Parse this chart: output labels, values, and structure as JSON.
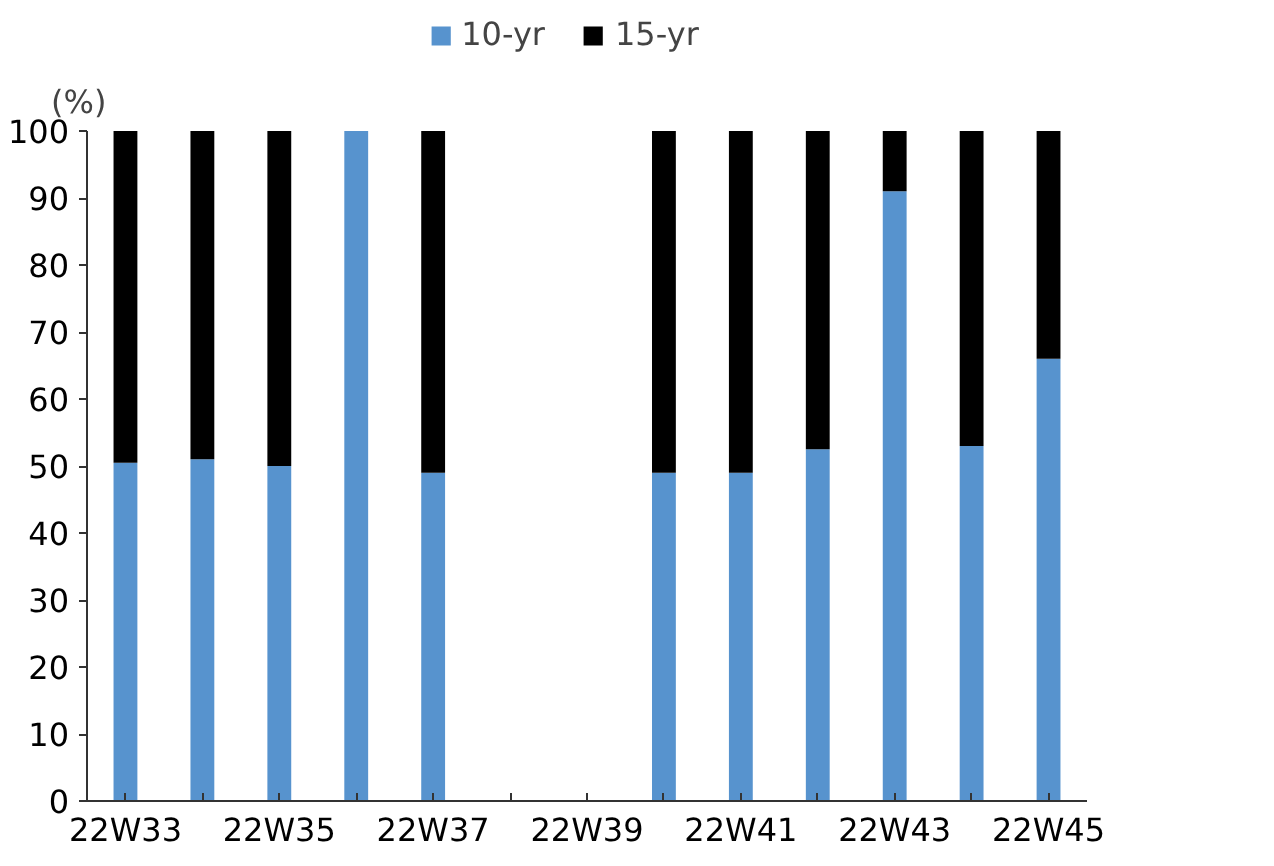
{
  "chart_data": {
    "type": "bar",
    "stacked": true,
    "ylabel": "(%)",
    "categories": [
      "22W33",
      null,
      "22W35",
      null,
      "22W37",
      null,
      "22W39",
      null,
      "22W41",
      null,
      "22W43",
      null,
      "22W45"
    ],
    "series": [
      {
        "name": "10-yr",
        "color": "#5793ce",
        "values": [
          50.5,
          51,
          50,
          100,
          49,
          null,
          null,
          49,
          49,
          52.5,
          91,
          53,
          66
        ]
      },
      {
        "name": "15-yr",
        "color": "#000000",
        "values": [
          49.5,
          49,
          50,
          0,
          51,
          null,
          null,
          51,
          51,
          47.5,
          9,
          47,
          34
        ]
      }
    ],
    "ylim": [
      0,
      100
    ],
    "yticks": [
      0,
      10,
      20,
      30,
      40,
      50,
      60,
      70,
      80,
      90,
      100
    ],
    "grid": false,
    "legend": "top"
  }
}
